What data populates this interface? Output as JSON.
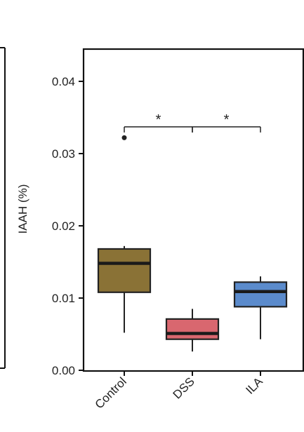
{
  "chart_data": {
    "type": "box",
    "title": "",
    "xlabel": "",
    "ylabel": "IAAH (%)",
    "ylim": [
      0.0,
      0.045
    ],
    "yticks": [
      {
        "value": 0.0,
        "label": "0.00"
      },
      {
        "value": 0.01,
        "label": "0.01"
      },
      {
        "value": 0.02,
        "label": "0.02"
      },
      {
        "value": 0.03,
        "label": "0.03"
      },
      {
        "value": 0.04,
        "label": "0.04"
      }
    ],
    "grid": false,
    "categories": [
      "Control",
      "DSS",
      "ILA"
    ],
    "boxes": [
      {
        "category": "Control",
        "whisker_low": 0.0052,
        "q1": 0.0108,
        "median": 0.0148,
        "q3": 0.0168,
        "whisker_high": 0.0172,
        "outliers": [
          0.0322
        ],
        "color": "#8a7236"
      },
      {
        "category": "DSS",
        "whisker_low": 0.0026,
        "q1": 0.0043,
        "median": 0.0051,
        "q3": 0.0071,
        "whisker_high": 0.0085,
        "outliers": [],
        "color": "#d9676f"
      },
      {
        "category": "ILA",
        "whisker_low": 0.0043,
        "q1": 0.0088,
        "median": 0.0109,
        "q3": 0.0122,
        "whisker_high": 0.013,
        "outliers": [],
        "color": "#5b8bcc"
      }
    ],
    "significance": [
      {
        "from": "Control",
        "to": "DSS",
        "y": 0.0337,
        "label": "*"
      },
      {
        "from": "DSS",
        "to": "ILA",
        "y": 0.0337,
        "label": "*"
      }
    ]
  }
}
